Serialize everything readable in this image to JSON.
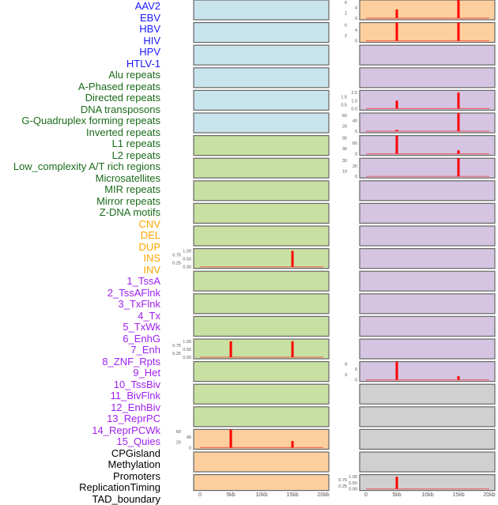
{
  "labels": [
    {
      "t": "AAV2",
      "c": "#1a1aff"
    },
    {
      "t": "EBV",
      "c": "#1a1aff"
    },
    {
      "t": "HBV",
      "c": "#1a1aff"
    },
    {
      "t": "HIV",
      "c": "#1a1aff"
    },
    {
      "t": "HPV",
      "c": "#1a1aff"
    },
    {
      "t": "HTLV-1",
      "c": "#1a1aff"
    },
    {
      "t": "Alu repeats",
      "c": "#1a6b1a"
    },
    {
      "t": "A-Phased repeats",
      "c": "#1a6b1a"
    },
    {
      "t": "Directed repeats",
      "c": "#1a6b1a"
    },
    {
      "t": "DNA transposons",
      "c": "#1a6b1a"
    },
    {
      "t": "G-Quadruplex forming repeats",
      "c": "#1a6b1a"
    },
    {
      "t": "Inverted repeats",
      "c": "#1a6b1a"
    },
    {
      "t": "L1 repeats",
      "c": "#1a6b1a"
    },
    {
      "t": "L2 repeats",
      "c": "#1a6b1a"
    },
    {
      "t": "Low_complexity A/T rich regions",
      "c": "#1a6b1a"
    },
    {
      "t": "Microsatellites",
      "c": "#1a6b1a"
    },
    {
      "t": "MIR repeats",
      "c": "#1a6b1a"
    },
    {
      "t": "Mirror repeats",
      "c": "#1a6b1a"
    },
    {
      "t": "Z-DNA motifs",
      "c": "#1a6b1a"
    },
    {
      "t": "CNV",
      "c": "#ffa500"
    },
    {
      "t": "DEL",
      "c": "#ffa500"
    },
    {
      "t": "DUP",
      "c": "#ffa500"
    },
    {
      "t": "INS",
      "c": "#ffa500"
    },
    {
      "t": "INV",
      "c": "#ffa500"
    },
    {
      "t": "1_TssA",
      "c": "#a020f0"
    },
    {
      "t": "2_TssAFlnk",
      "c": "#a020f0"
    },
    {
      "t": "3_TxFlnk",
      "c": "#a020f0"
    },
    {
      "t": "4_Tx",
      "c": "#a020f0"
    },
    {
      "t": "5_TxWk",
      "c": "#a020f0"
    },
    {
      "t": "6_EnhG",
      "c": "#a020f0"
    },
    {
      "t": "7_Enh",
      "c": "#a020f0"
    },
    {
      "t": "8_ZNF_Rpts",
      "c": "#a020f0"
    },
    {
      "t": "9_Het",
      "c": "#a020f0"
    },
    {
      "t": "10_TssBiv",
      "c": "#a020f0"
    },
    {
      "t": "11_BivFlnk",
      "c": "#a020f0"
    },
    {
      "t": "12_EnhBiv",
      "c": "#a020f0"
    },
    {
      "t": "13_ReprPC",
      "c": "#a020f0"
    },
    {
      "t": "14_ReprPCWk",
      "c": "#a020f0"
    },
    {
      "t": "15_Quies",
      "c": "#a020f0"
    },
    {
      "t": "CPGisland",
      "c": "#000000"
    },
    {
      "t": "Methylation",
      "c": "#000000"
    },
    {
      "t": "Promoters",
      "c": "#000000"
    },
    {
      "t": "ReplicationTiming",
      "c": "#000000"
    },
    {
      "t": "TAD_boundary",
      "c": "#000000"
    }
  ],
  "chart_data": {
    "type": "bar",
    "xticks": [
      "0",
      "5kb",
      "10kb",
      "15kb",
      "20kb"
    ],
    "xlim": [
      0,
      20000
    ],
    "colors": {
      "blue": "#c8e4ec",
      "green": "#c9e0a3",
      "orange": "#fdcf9e",
      "purple": "#d5c5e2",
      "grey": "#d0d0d0",
      "bar": "#ff0000"
    },
    "default_yticks": [
      "0",
      "100",
      "200",
      "300",
      "400",
      "500"
    ],
    "left": [
      {
        "bg": "blue"
      },
      {
        "bg": "blue"
      },
      {
        "bg": "blue"
      },
      {
        "bg": "blue"
      },
      {
        "bg": "blue"
      },
      {
        "bg": "blue"
      },
      {
        "bg": "green"
      },
      {
        "bg": "green"
      },
      {
        "bg": "green"
      },
      {
        "bg": "green"
      },
      {
        "bg": "green"
      },
      {
        "bg": "green",
        "ymax": 1,
        "yticks": [
          "0.00",
          "0.25",
          "0.50",
          "0.75",
          "1.00"
        ],
        "bars": [
          [
            15000,
            1
          ]
        ]
      },
      {
        "bg": "green"
      },
      {
        "bg": "green"
      },
      {
        "bg": "green"
      },
      {
        "bg": "green",
        "ymax": 1,
        "yticks": [
          "0.00",
          "0.25",
          "0.50",
          "0.75",
          "1.00"
        ],
        "bars": [
          [
            5000,
            1
          ],
          [
            15000,
            1
          ]
        ]
      },
      {
        "bg": "green"
      },
      {
        "bg": "green"
      },
      {
        "bg": "green"
      },
      {
        "bg": "orange",
        "ymax": 60,
        "yticks": [
          "0",
          "20",
          "40",
          "60"
        ],
        "bars": [
          [
            5000,
            70
          ],
          [
            15000,
            25
          ]
        ]
      },
      {
        "bg": "orange"
      },
      {
        "bg": "orange"
      }
    ],
    "right": [
      {
        "bg": "orange",
        "ymax": 6,
        "yticks": [
          "0",
          "2",
          "4",
          "6"
        ],
        "bars": [
          [
            5000,
            3.3
          ],
          [
            15000,
            7
          ]
        ]
      },
      {
        "bg": "orange",
        "ymax": 6,
        "yticks": [
          "0",
          "2",
          "4",
          "6"
        ],
        "bars": [
          [
            5000,
            7
          ],
          [
            15000,
            7
          ]
        ]
      },
      {
        "bg": "purple"
      },
      {
        "bg": "purple"
      },
      {
        "bg": "purple",
        "ymax": 2,
        "yticks": [
          "0.0",
          "0.5",
          "1.0",
          "1.5",
          "2.0"
        ],
        "bars": [
          [
            5000,
            1
          ],
          [
            15000,
            2
          ]
        ]
      },
      {
        "bg": "purple",
        "ymax": 60,
        "yticks": [
          "0",
          "20",
          "40",
          "60"
        ],
        "bars": [
          [
            5000,
            5
          ],
          [
            15000,
            75
          ]
        ]
      },
      {
        "bg": "purple",
        "ymax": 90,
        "yticks": [
          "0",
          "30",
          "60",
          "90"
        ],
        "bars": [
          [
            5000,
            110
          ],
          [
            15000,
            20
          ]
        ]
      },
      {
        "bg": "purple",
        "ymax": 30,
        "yticks": [
          "0",
          "10",
          "20",
          "30"
        ],
        "bars": [
          [
            15000,
            38
          ]
        ]
      },
      {
        "bg": "purple"
      },
      {
        "bg": "purple"
      },
      {
        "bg": "purple"
      },
      {
        "bg": "purple"
      },
      {
        "bg": "purple"
      },
      {
        "bg": "purple"
      },
      {
        "bg": "purple"
      },
      {
        "bg": "purple"
      },
      {
        "bg": "purple",
        "ymax": 9,
        "yticks": [
          "0",
          "3",
          "6",
          "9"
        ],
        "bars": [
          [
            5000,
            11
          ],
          [
            15000,
            2
          ]
        ]
      },
      {
        "bg": "grey"
      },
      {
        "bg": "grey"
      },
      {
        "bg": "grey"
      },
      {
        "bg": "grey"
      },
      {
        "bg": "grey",
        "ymax": 1,
        "yticks": [
          "0.00",
          "0.25",
          "0.50",
          "0.75",
          "1.00"
        ],
        "bars": [
          [
            5000,
            1
          ]
        ]
      }
    ]
  }
}
